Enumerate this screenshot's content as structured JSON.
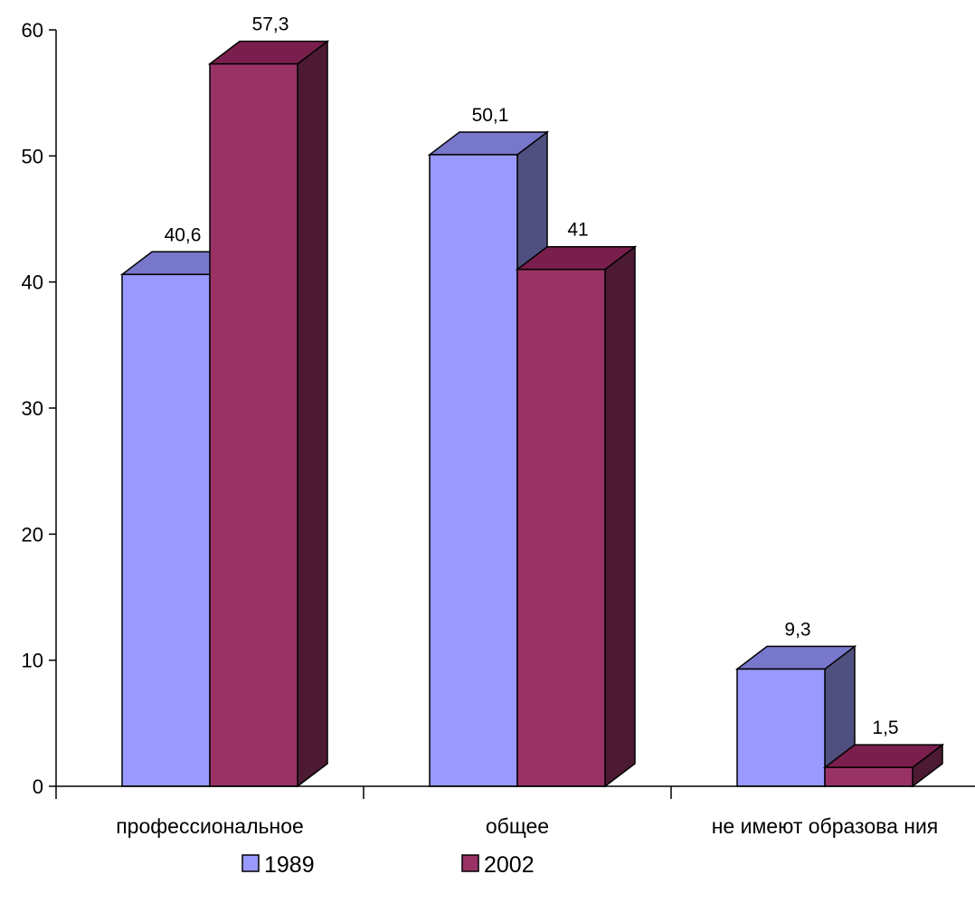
{
  "chart_data": {
    "type": "bar",
    "style": "3d-clustered-column",
    "categories": [
      "профессиональное",
      "общее",
      "не имеют образова ния"
    ],
    "series": [
      {
        "name": "1989",
        "values": [
          40.6,
          50.1,
          9.3
        ],
        "labels": [
          "40,6",
          "50,1",
          "9,3"
        ],
        "color": "#9999FF"
      },
      {
        "name": "2002",
        "values": [
          57.3,
          41,
          1.5
        ],
        "labels": [
          "57,3",
          "41",
          "1,5"
        ],
        "color": "#993366"
      }
    ],
    "yticks": [
      0,
      10,
      20,
      30,
      40,
      50,
      60
    ],
    "ylim": [
      0,
      60
    ],
    "grid": false,
    "legend_position": "bottom",
    "title": "",
    "xlabel": "",
    "ylabel": ""
  }
}
